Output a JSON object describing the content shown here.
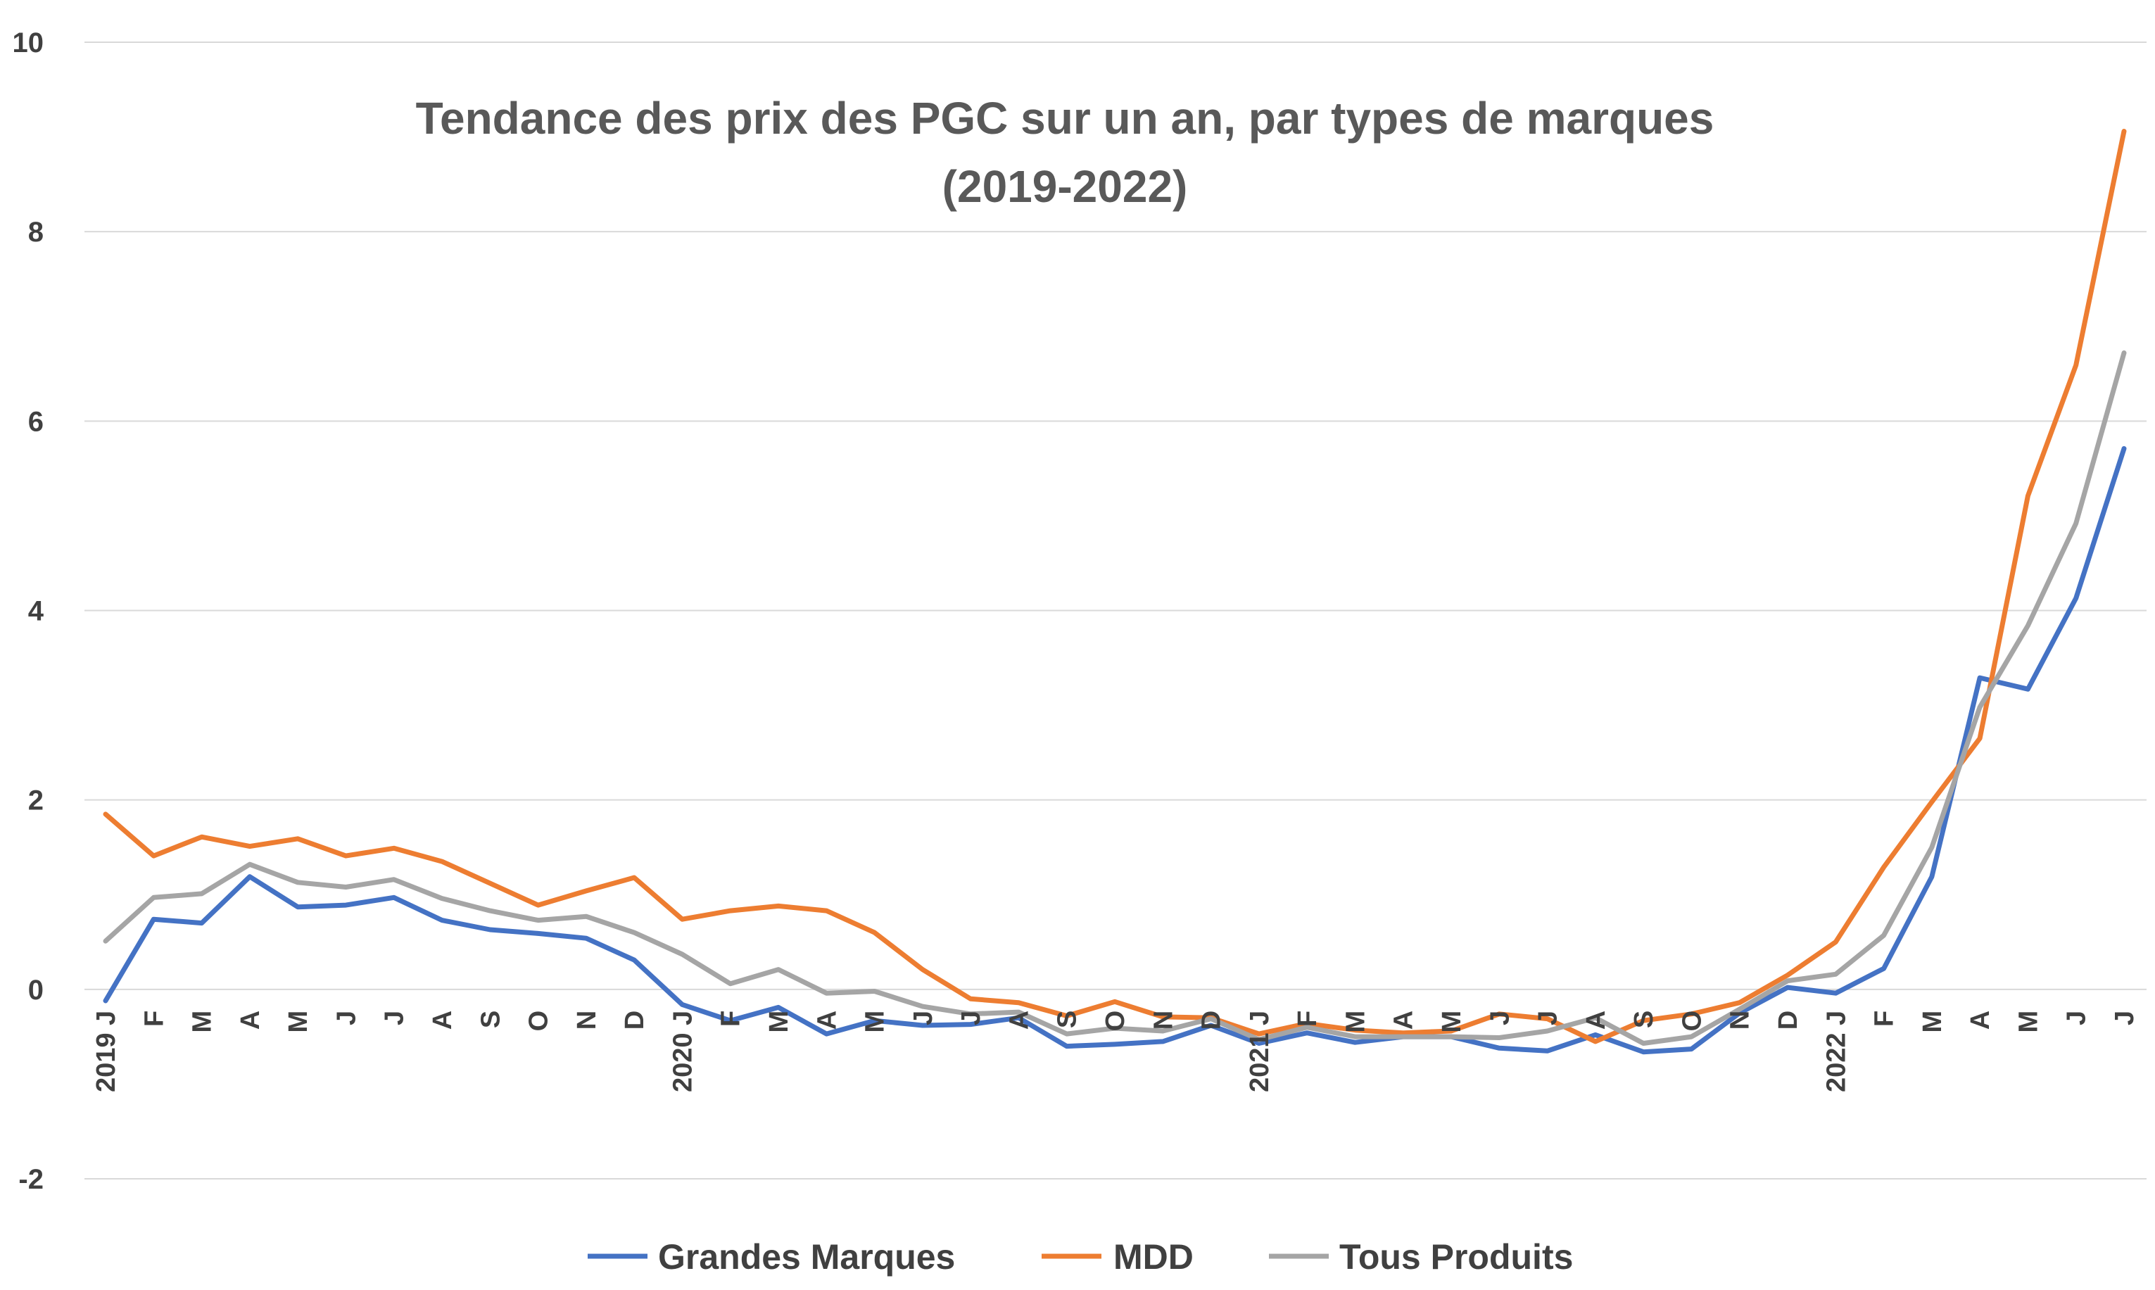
{
  "chart_data": {
    "type": "line",
    "title_line1": "Tendance des prix des PGC sur un an, par types de marques",
    "title_line2": "(2019-2022)",
    "xlabel": "",
    "ylabel": "",
    "ylim": [
      -2,
      10
    ],
    "yticks": [
      -2,
      0,
      2,
      4,
      6,
      8,
      10
    ],
    "grid": true,
    "legend_position": "bottom",
    "categories": [
      "2019 J",
      "F",
      "M",
      "A",
      "M",
      "J",
      "J",
      "A",
      "S",
      "O",
      "N",
      "D",
      "2020 J",
      "F",
      "M",
      "A",
      "M",
      "J",
      "J",
      "A",
      "S",
      "O",
      "N",
      "D",
      "2021 J",
      "F",
      "M",
      "A",
      "M",
      "J",
      "J",
      "A",
      "S",
      "O",
      "N",
      "D",
      "2022 J",
      "F",
      "M",
      "A",
      "M",
      "J",
      "J"
    ],
    "series": [
      {
        "name": "Grandes Marques",
        "color": "#4472C4",
        "values": [
          -0.12,
          0.74,
          0.7,
          1.19,
          0.87,
          0.89,
          0.97,
          0.73,
          0.63,
          0.59,
          0.54,
          0.31,
          -0.16,
          -0.33,
          -0.19,
          -0.47,
          -0.33,
          -0.38,
          -0.37,
          -0.3,
          -0.6,
          -0.58,
          -0.55,
          -0.38,
          -0.57,
          -0.46,
          -0.56,
          -0.5,
          -0.5,
          -0.62,
          -0.65,
          -0.48,
          -0.66,
          -0.63,
          -0.25,
          0.02,
          -0.04,
          0.22,
          1.19,
          3.29,
          3.17,
          4.13,
          5.71
        ]
      },
      {
        "name": "MDD",
        "color": "#ED7D31",
        "values": [
          1.85,
          1.41,
          1.61,
          1.51,
          1.59,
          1.41,
          1.49,
          1.35,
          1.12,
          0.89,
          1.04,
          1.18,
          0.74,
          0.83,
          0.88,
          0.83,
          0.6,
          0.21,
          -0.1,
          -0.14,
          -0.28,
          -0.13,
          -0.29,
          -0.3,
          -0.47,
          -0.36,
          -0.43,
          -0.46,
          -0.44,
          -0.26,
          -0.31,
          -0.55,
          -0.33,
          -0.26,
          -0.14,
          0.15,
          0.5,
          1.29,
          1.98,
          2.65,
          5.21,
          6.59,
          9.06
        ]
      },
      {
        "name": "Tous Produits",
        "color": "#A5A5A5",
        "values": [
          0.51,
          0.97,
          1.01,
          1.32,
          1.13,
          1.08,
          1.16,
          0.96,
          0.83,
          0.73,
          0.77,
          0.6,
          0.37,
          0.06,
          0.21,
          -0.04,
          -0.02,
          -0.18,
          -0.26,
          -0.24,
          -0.47,
          -0.41,
          -0.44,
          -0.31,
          -0.53,
          -0.4,
          -0.5,
          -0.5,
          -0.5,
          -0.51,
          -0.44,
          -0.3,
          -0.57,
          -0.5,
          -0.21,
          0.09,
          0.16,
          0.57,
          1.5,
          2.98,
          3.84,
          4.92,
          6.72
        ]
      }
    ]
  }
}
